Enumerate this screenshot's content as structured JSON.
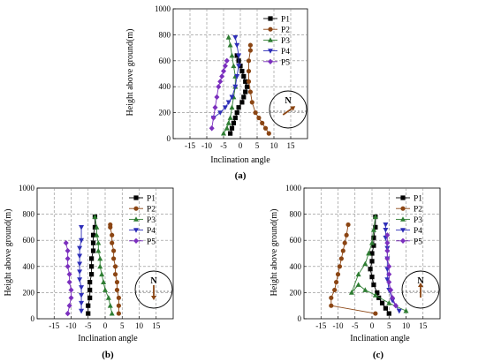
{
  "panels": [
    {
      "label": "(a)",
      "xlabel": "Inclination angle",
      "ylabel": "Height above ground(m)",
      "compass_label": "N",
      "compass_arrow_angle_deg": 55
    },
    {
      "label": "(b)",
      "xlabel": "Inclination angle",
      "ylabel": "Height above ground(m)",
      "compass_label": "N",
      "compass_arrow_angle_deg": 180
    },
    {
      "label": "(c)",
      "xlabel": "Inclination angle",
      "ylabel": "Height above ground(m)",
      "compass_label": "N",
      "compass_arrow_angle_deg": 0
    }
  ],
  "series_styles": [
    {
      "name": "P1",
      "color": "#000000",
      "marker": "square"
    },
    {
      "name": "P2",
      "color": "#8B4513",
      "marker": "circle"
    },
    {
      "name": "P3",
      "color": "#2E7D32",
      "marker": "triangle-up"
    },
    {
      "name": "P4",
      "color": "#2E2EB8",
      "marker": "triangle-down"
    },
    {
      "name": "P5",
      "color": "#7B2FBE",
      "marker": "diamond"
    }
  ],
  "chart_data": [
    {
      "type": "line",
      "title": "(a)",
      "xlabel": "Inclination angle",
      "ylabel": "Height above ground(m)",
      "xlim": [
        -20,
        20
      ],
      "ylim": [
        0,
        1000
      ],
      "xticks": [
        -15,
        -10,
        -5,
        0,
        5,
        10,
        15
      ],
      "yticks": [
        0,
        200,
        400,
        600,
        800,
        1000
      ],
      "grid": true,
      "legend": "top-right",
      "series": [
        {
          "name": "P1",
          "x": [
            -3,
            -2.5,
            -2,
            -1.5,
            -1,
            -0.5,
            0.5,
            1,
            1.5,
            2,
            1.5,
            1,
            0.5,
            0,
            -0.5,
            -1
          ],
          "y": [
            40,
            80,
            120,
            160,
            200,
            240,
            280,
            320,
            360,
            400,
            440,
            480,
            520,
            560,
            600,
            640
          ]
        },
        {
          "name": "P2",
          "x": [
            8.5,
            7.5,
            6.5,
            5.5,
            4.5,
            3.5,
            3,
            2.5,
            2.5,
            2.5,
            3,
            3
          ],
          "y": [
            40,
            80,
            120,
            160,
            200,
            280,
            360,
            440,
            520,
            600,
            680,
            720
          ]
        },
        {
          "name": "P3",
          "x": [
            -5,
            -4,
            -3.5,
            -3,
            -2.5,
            -2,
            -1.5,
            -1.5,
            -2,
            -2.5,
            -3,
            -3.5
          ],
          "y": [
            40,
            80,
            120,
            160,
            240,
            320,
            400,
            480,
            560,
            640,
            720,
            780
          ]
        },
        {
          "name": "P4",
          "x": [
            -8,
            -6,
            -4.5,
            -3.5,
            -2.5,
            -1.5,
            -1,
            -0.5,
            -0.5,
            -1,
            -1.5
          ],
          "y": [
            160,
            200,
            240,
            280,
            320,
            400,
            480,
            560,
            640,
            720,
            780
          ]
        },
        {
          "name": "P5",
          "x": [
            -8.5,
            -8,
            -7.5,
            -7,
            -6.5,
            -6,
            -5.5,
            -5,
            -4.5,
            -4
          ],
          "y": [
            80,
            160,
            240,
            320,
            400,
            440,
            480,
            520,
            560,
            600
          ]
        }
      ]
    },
    {
      "type": "line",
      "title": "(b)",
      "xlabel": "Inclination angle",
      "ylabel": "Height above ground(m)",
      "xlim": [
        -20,
        20
      ],
      "ylim": [
        0,
        1000
      ],
      "xticks": [
        -15,
        -10,
        -5,
        0,
        5,
        10,
        15
      ],
      "yticks": [
        0,
        200,
        400,
        600,
        800,
        1000
      ],
      "grid": true,
      "legend": "top-right",
      "series": [
        {
          "name": "P1",
          "x": [
            -5,
            -5,
            -4.5,
            -4.5,
            -4.5,
            -4,
            -4,
            -4,
            -3.5,
            -3.5,
            -3.5,
            -3,
            -3
          ],
          "y": [
            40,
            100,
            160,
            220,
            280,
            340,
            400,
            460,
            520,
            580,
            640,
            700,
            780
          ]
        },
        {
          "name": "P2",
          "x": [
            4,
            4,
            4,
            3.5,
            3.5,
            3,
            3,
            2.5,
            2.5,
            2,
            2,
            1.5,
            1.5
          ],
          "y": [
            40,
            100,
            160,
            220,
            280,
            340,
            400,
            460,
            520,
            580,
            640,
            700,
            720
          ]
        },
        {
          "name": "P3",
          "x": [
            2,
            1.5,
            1,
            0,
            -0.5,
            -1,
            -1.5,
            -1.5,
            -2,
            -2,
            -2.5,
            -2.5,
            -3
          ],
          "y": [
            40,
            100,
            160,
            220,
            280,
            340,
            400,
            460,
            520,
            580,
            640,
            700,
            780
          ]
        },
        {
          "name": "P4",
          "x": [
            -7,
            -7,
            -7,
            -7,
            -7.5,
            -7.5,
            -7.5,
            -7.5,
            -7.5,
            -7,
            -7
          ],
          "y": [
            60,
            120,
            180,
            240,
            300,
            360,
            420,
            480,
            540,
            600,
            700
          ]
        },
        {
          "name": "P5",
          "x": [
            -11,
            -10.5,
            -10,
            -10,
            -10.5,
            -10.5,
            -11,
            -11,
            -11,
            -11.5
          ],
          "y": [
            40,
            100,
            160,
            220,
            280,
            340,
            400,
            460,
            520,
            580
          ]
        }
      ]
    },
    {
      "type": "line",
      "title": "(c)",
      "xlabel": "Inclination angle",
      "ylabel": "Height above ground(m)",
      "xlim": [
        -20,
        20
      ],
      "ylim": [
        0,
        1000
      ],
      "xticks": [
        -15,
        -10,
        -5,
        0,
        5,
        10,
        15
      ],
      "yticks": [
        0,
        200,
        400,
        600,
        800,
        1000
      ],
      "grid": true,
      "legend": "top-right",
      "series": [
        {
          "name": "P1",
          "x": [
            5,
            4,
            3,
            2,
            1.5,
            0.5,
            0,
            -0.5,
            0,
            0,
            0.5,
            0.5,
            1,
            1
          ],
          "y": [
            40,
            80,
            120,
            160,
            200,
            260,
            320,
            380,
            440,
            500,
            560,
            620,
            700,
            780
          ]
        },
        {
          "name": "P2",
          "x": [
            1,
            -12,
            -12,
            -11,
            -10.5,
            -10,
            -9.5,
            -9,
            -8.5,
            -8,
            -7.5,
            -7
          ],
          "y": [
            40,
            100,
            160,
            220,
            280,
            340,
            400,
            460,
            520,
            580,
            640,
            720
          ]
        },
        {
          "name": "P3",
          "x": [
            10,
            5,
            1,
            -2,
            -4,
            -6,
            -4,
            -2,
            -1,
            0,
            0.5,
            1
          ],
          "y": [
            60,
            120,
            180,
            220,
            260,
            200,
            340,
            420,
            500,
            580,
            680,
            780
          ]
        },
        {
          "name": "P4",
          "x": [
            8,
            6,
            5,
            4.5,
            4.5,
            4.5,
            4.5,
            4,
            4,
            4
          ],
          "y": [
            60,
            140,
            220,
            300,
            380,
            460,
            540,
            620,
            680,
            720
          ]
        },
        {
          "name": "P5",
          "x": [
            7,
            6,
            5.5,
            5,
            5,
            5,
            4.5,
            4.5,
            4.5,
            4.5
          ],
          "y": [
            100,
            160,
            220,
            280,
            340,
            400,
            460,
            520,
            580,
            640
          ]
        }
      ]
    }
  ]
}
